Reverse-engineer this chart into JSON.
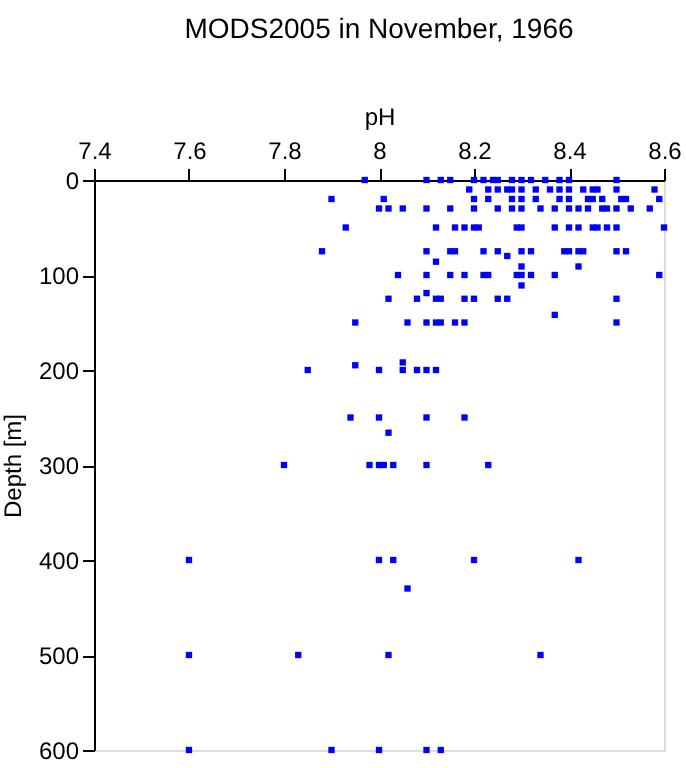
{
  "chart_data": {
    "type": "scatter",
    "title": "MODS2005 in November, 1966",
    "xlabel": "pH",
    "ylabel": "Depth [m]",
    "xlim": [
      7.4,
      8.6
    ],
    "ylim": [
      600,
      0
    ],
    "xticks": [
      7.4,
      7.6,
      7.8,
      {
        "value": 8,
        "label": "8"
      },
      8.2,
      8.4,
      8.6
    ],
    "yticks": [
      0,
      100,
      200,
      300,
      400,
      500,
      600
    ],
    "grid": false,
    "marker": "square",
    "legend": false,
    "series": [
      {
        "color": "#0000ff",
        "x": [
          7.97,
          8.1,
          8.13,
          8.15,
          8.2,
          8.22,
          8.24,
          8.25,
          8.28,
          8.3,
          8.32,
          8.35,
          8.38,
          8.4,
          8.5,
          8.19,
          8.23,
          8.25,
          8.27,
          8.28,
          8.3,
          8.33,
          8.36,
          8.38,
          8.4,
          8.43,
          8.45,
          8.46,
          8.5,
          8.58,
          7.9,
          8.01,
          8.2,
          8.23,
          8.28,
          8.3,
          8.33,
          8.38,
          8.4,
          8.44,
          8.45,
          8.47,
          8.51,
          8.52,
          8.59,
          8.0,
          8.02,
          8.05,
          8.1,
          8.15,
          8.2,
          8.25,
          8.28,
          8.3,
          8.34,
          8.37,
          8.4,
          8.42,
          8.44,
          8.47,
          8.48,
          8.5,
          8.53,
          8.57,
          7.93,
          8.12,
          8.16,
          8.18,
          8.2,
          8.21,
          8.29,
          8.3,
          8.37,
          8.4,
          8.42,
          8.45,
          8.46,
          8.48,
          8.5,
          8.6,
          7.88,
          8.1,
          8.15,
          8.16,
          8.22,
          8.25,
          8.3,
          8.32,
          8.39,
          8.4,
          8.42,
          8.43,
          8.5,
          8.52,
          8.27,
          8.12,
          8.3,
          8.42,
          8.04,
          8.1,
          8.15,
          8.18,
          8.22,
          8.23,
          8.29,
          8.3,
          8.32,
          8.37,
          8.59,
          8.3,
          8.1,
          8.02,
          8.08,
          8.12,
          8.13,
          8.18,
          8.2,
          8.25,
          8.27,
          8.5,
          8.37,
          7.95,
          8.06,
          8.1,
          8.12,
          8.13,
          8.16,
          8.18,
          8.5,
          8.05,
          7.95,
          7.85,
          8.0,
          8.05,
          8.08,
          8.1,
          8.12,
          7.94,
          8.0,
          8.1,
          8.18,
          8.02,
          7.8,
          7.98,
          8.0,
          8.01,
          8.03,
          8.1,
          8.23,
          7.6,
          8.0,
          8.03,
          8.2,
          8.42,
          8.06,
          7.6,
          7.83,
          8.02,
          8.34,
          7.6,
          7.9,
          8.0,
          8.1,
          8.13
        ],
        "values": [
          0,
          0,
          0,
          0,
          0,
          0,
          0,
          0,
          0,
          0,
          0,
          0,
          0,
          0,
          0,
          10,
          10,
          10,
          10,
          10,
          10,
          10,
          10,
          10,
          10,
          10,
          10,
          10,
          10,
          10,
          20,
          20,
          20,
          20,
          20,
          20,
          20,
          20,
          20,
          20,
          20,
          20,
          20,
          20,
          20,
          30,
          30,
          30,
          30,
          30,
          30,
          30,
          30,
          30,
          30,
          30,
          30,
          30,
          30,
          30,
          30,
          30,
          30,
          30,
          50,
          50,
          50,
          50,
          50,
          50,
          50,
          50,
          50,
          50,
          50,
          50,
          50,
          50,
          50,
          50,
          75,
          75,
          75,
          75,
          75,
          75,
          75,
          75,
          75,
          75,
          75,
          75,
          75,
          75,
          80,
          86,
          91,
          91,
          100,
          100,
          100,
          100,
          100,
          100,
          100,
          100,
          100,
          100,
          100,
          111,
          119,
          125,
          125,
          125,
          125,
          125,
          125,
          125,
          125,
          125,
          142,
          150,
          150,
          150,
          150,
          150,
          150,
          150,
          150,
          192,
          195,
          200,
          200,
          200,
          200,
          200,
          200,
          250,
          250,
          250,
          250,
          266,
          300,
          300,
          300,
          300,
          300,
          300,
          300,
          400,
          400,
          400,
          400,
          400,
          430,
          500,
          500,
          500,
          500,
          600,
          600,
          600,
          600,
          600
        ]
      }
    ]
  }
}
